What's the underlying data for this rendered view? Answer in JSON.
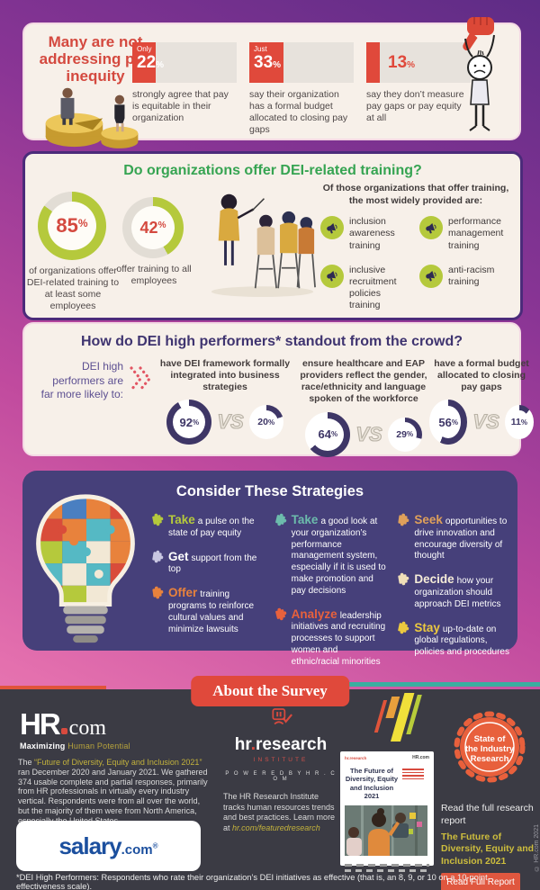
{
  "colors": {
    "accent_red": "#e0493b",
    "lime": "#b5c93c",
    "green_title": "#36a452",
    "navy": "#3e3666",
    "purple_panel": "#46407a",
    "dark_bg": "#3b3b44",
    "cream_card": "#f7f0e9",
    "yellow_link": "#c3b23c",
    "orange_badge": "#e8603c",
    "teal_strip": "#3aaea0",
    "salary_blue": "#1b4f9e"
  },
  "pay": {
    "title": "Many are not addressing pay inequity",
    "stats": [
      {
        "qual": "Only",
        "num": "22",
        "sym": "%",
        "pct": 22,
        "desc": "strongly agree that pay is equitable in their organization"
      },
      {
        "qual": "Just",
        "num": "33",
        "sym": "%",
        "pct": 33,
        "desc": "say their organization has a formal budget allocated to closing pay gaps"
      },
      {
        "qual": "",
        "num": "13",
        "sym": "%",
        "pct": 13,
        "desc": "say they don’t measure pay gaps or pay equity at all"
      }
    ]
  },
  "training": {
    "title": "Do organizations offer DEI-related training?",
    "stat1": {
      "num": "85",
      "sym": "%",
      "pct": 85,
      "desc": "of organizations offer DEI-related training to at least some employees"
    },
    "stat2": {
      "num": "42",
      "sym": "%",
      "pct": 42,
      "desc": "offer training to all employees"
    },
    "intro": "Of those organizations that offer training, the most widely provided are:",
    "items": [
      {
        "label": "inclusion awareness training"
      },
      {
        "label": "performance management training"
      },
      {
        "label": "inclusive recruitment policies training"
      },
      {
        "label": "anti-racism training"
      }
    ]
  },
  "high_performers": {
    "title": "How do DEI high performers* standout from the crowd?",
    "lead": "DEI high performers are far more likely to:",
    "vs": "VS",
    "items": [
      {
        "desc": "have DEI framework formally integrated into business strategies",
        "hi_num": "92",
        "hi_sym": "%",
        "hi_pct": 92,
        "lo_num": "20",
        "lo_sym": "%",
        "lo_pct": 20
      },
      {
        "desc": "ensure healthcare and EAP providers reflect the gender, race/ethnicity and language spoken of the workforce",
        "hi_num": "64",
        "hi_sym": "%",
        "hi_pct": 64,
        "lo_num": "29",
        "lo_sym": "%",
        "lo_pct": 29
      },
      {
        "desc": "have a formal budget allocated to closing pay gaps",
        "hi_num": "56",
        "hi_sym": "%",
        "hi_pct": 56,
        "lo_num": "11",
        "lo_sym": "%",
        "lo_pct": 11
      }
    ]
  },
  "strategies": {
    "title": "Consider These Strategies",
    "cols": [
      [
        {
          "lead": "Take",
          "rest": "a pulse on the state of pay equity",
          "color": "#b5c93c"
        },
        {
          "lead": "Get",
          "rest": "support from the top",
          "color": "#c9c7e2"
        },
        {
          "lead": "Offer",
          "rest": "training programs to reinforce cultural values and minimize lawsuits",
          "color": "#e8823c"
        }
      ],
      [
        {
          "lead": "Take",
          "rest": "a good look at your organization’s performance management system, especially if it is used to make promotion and pay decisions",
          "color": "#6cbcac"
        },
        {
          "lead": "Analyze",
          "rest": "leadership initiatives and recruiting processes to support women and ethnic/racial minorities",
          "color": "#e8613c"
        }
      ],
      [
        {
          "lead": "Seek",
          "rest": "opportunities to drive innovation and encourage diversity of thought",
          "color": "#dfa05a"
        },
        {
          "lead": "Decide",
          "rest": "how your organization should approach DEI metrics",
          "color": "#f0dfb8"
        },
        {
          "lead": "Stay",
          "rest": "up-to-date on global regulations, policies and procedures",
          "color": "#ecc93f"
        }
      ]
    ]
  },
  "about": {
    "badge": "About the Survey",
    "hrcom": {
      "logo_hr": "HR",
      "logo_com": "com",
      "tagline_a": "Maximizing ",
      "tagline_b": "Human Potential",
      "p_before": "The ",
      "p_link": "“Future of Diversity, Equity and Inclusion 2021”",
      "p_after": " ran December 2020 and January 2021. We gathered 374 usable complete and partial responses, primarily from HR professionals in virtually every industry vertical. Respondents were from all over the world, but the majority of them were from North America, especially the United States."
    },
    "hrri": {
      "logo_a": "hr",
      "logo_dot": ".",
      "logo_b": "research",
      "sub": "INSTITUTE",
      "powered": "P O W E R E D   B Y   H R . C O M",
      "p": "The HR Research Institute tracks human resources trends and best practices. Learn more at ",
      "link": "hr.com/featuredresearch"
    },
    "badge2": [
      "State of",
      "the Industry",
      "Research"
    ],
    "cover": {
      "logo_left": "hr.research",
      "logo_right": "HR.com",
      "title": "The Future of Diversity, Equity and Inclusion 2021"
    },
    "read": {
      "line": "Read the full research report",
      "title": "The Future of Diversity, Equity and Inclusion 2021",
      "button": "Read Full Report"
    },
    "salary": {
      "name": "salary",
      "dot": ".",
      "tld": "com",
      "reg": "®"
    },
    "copyright": "© HR.com 2021"
  },
  "footnote": "*DEI High Performers: Respondents who rate their organization’s DEI initiatives as effective (that is, an 8, 9, or 10 on a 10-point effectiveness scale).",
  "chart_data": [
    {
      "type": "bar",
      "title": "Many are not addressing pay inequity",
      "unit": "%",
      "categories": [
        "strongly agree that pay is equitable in their organization",
        "say their organization has a formal budget allocated to closing pay gaps",
        "say they don’t measure pay gaps or pay equity at all"
      ],
      "values": [
        22,
        33,
        13
      ],
      "ylim": [
        0,
        100
      ]
    },
    {
      "type": "pie",
      "subtype": "donut",
      "title": "Do organizations offer DEI-related training?",
      "unit": "%",
      "slices": [
        {
          "label": "of organizations offer DEI-related training to at least some employees",
          "value": 85
        },
        {
          "label": "offer training to all employees",
          "value": 42
        }
      ]
    },
    {
      "type": "bar",
      "subtype": "donut-comparison",
      "title": "How do DEI high performers* standout from the crowd?",
      "unit": "%",
      "categories": [
        "have DEI framework formally integrated into business strategies",
        "ensure healthcare and EAP providers reflect the gender, race/ethnicity and language spoken of the workforce",
        "have a formal budget allocated to closing pay gaps"
      ],
      "series": [
        {
          "name": "DEI high performers",
          "values": [
            92,
            64,
            56
          ]
        },
        {
          "name": "VS",
          "values": [
            20,
            29,
            11
          ]
        }
      ]
    }
  ]
}
